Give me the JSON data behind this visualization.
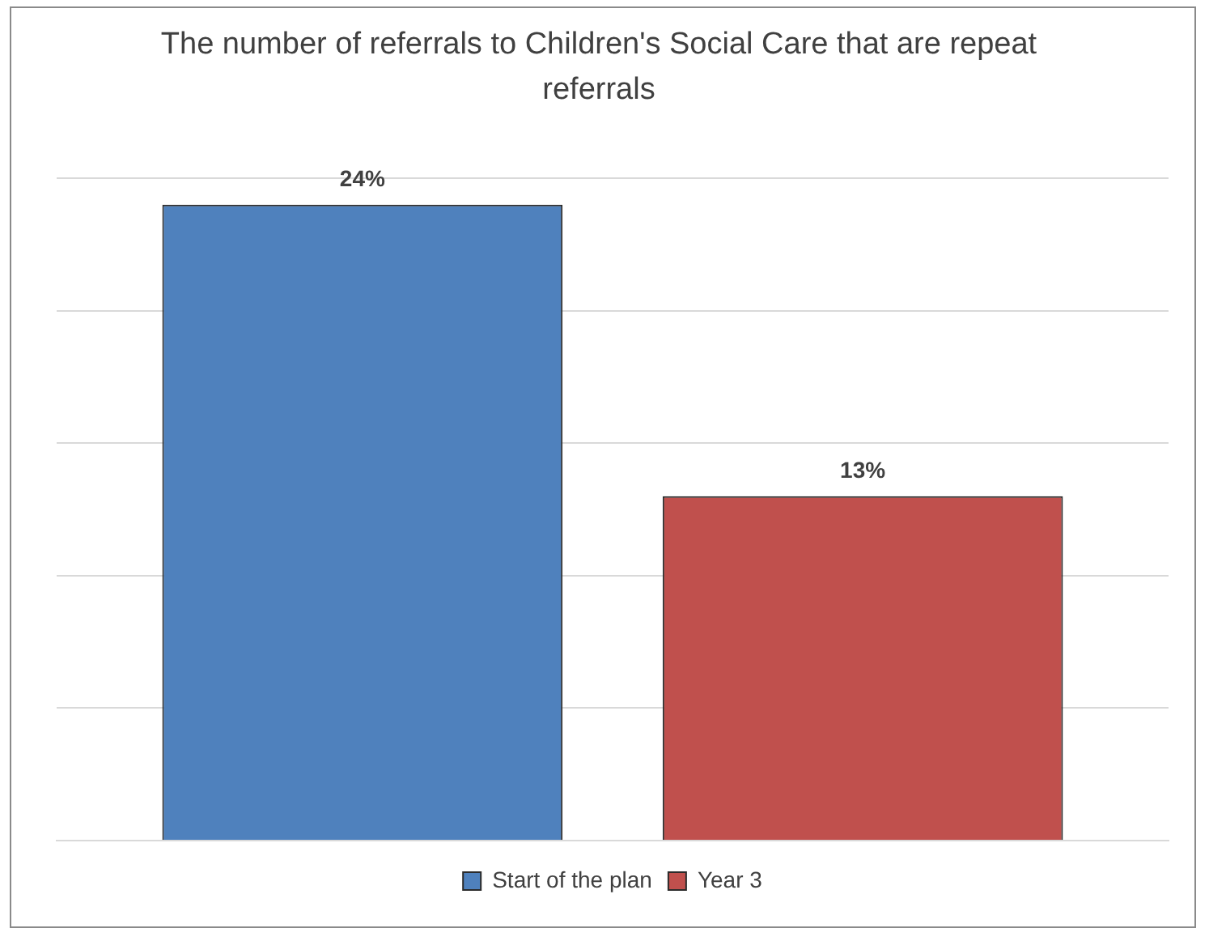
{
  "chart_data": {
    "type": "bar",
    "title": "The number of referrals to Children's Social Care that are repeat referrals",
    "categories": [
      null
    ],
    "series": [
      {
        "name": "Start of the plan",
        "color": "#4f81bd",
        "values": [
          24
        ],
        "value_labels": [
          "24%"
        ]
      },
      {
        "name": "Year 3",
        "color": "#c0504d",
        "values": [
          13
        ],
        "value_labels": [
          "13%"
        ]
      }
    ],
    "grid": "y",
    "legend": "bottom",
    "tick_labels": false
  }
}
